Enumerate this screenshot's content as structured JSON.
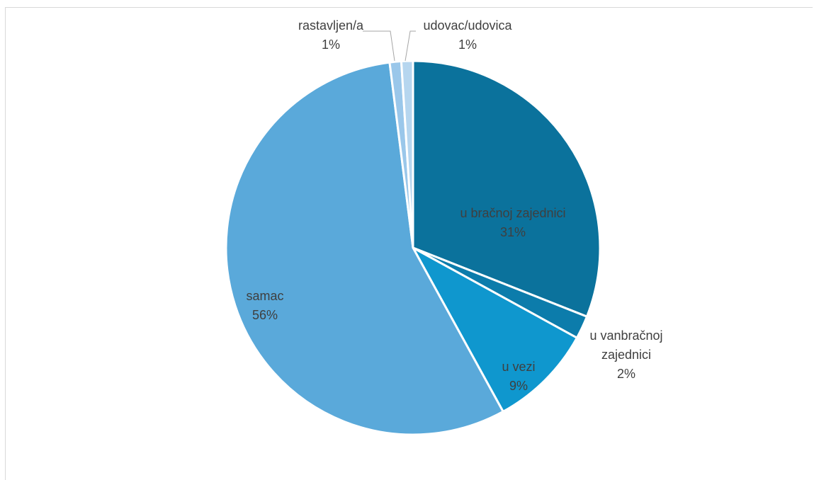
{
  "chart_data": {
    "type": "pie",
    "title": "",
    "slices": [
      {
        "label": "u bračnoj zajednici",
        "value": 31,
        "value_label": "31%",
        "color": "#0b729c"
      },
      {
        "label": "u vanbračnoj zajednici",
        "label_lines": [
          "u vanbračnoj",
          "zajednici"
        ],
        "value": 2,
        "value_label": "2%",
        "color": "#0c7cab"
      },
      {
        "label": "u vezi",
        "value": 9,
        "value_label": "9%",
        "color": "#0f97ce"
      },
      {
        "label": "samac",
        "value": 56,
        "value_label": "56%",
        "color": "#5aa9da"
      },
      {
        "label": "rastavljen/a",
        "value": 1,
        "value_label": "1%",
        "color": "#9ac7ea"
      },
      {
        "label": "udovac/udovica",
        "value": 1,
        "value_label": "1%",
        "color": "#b6d6ef"
      }
    ],
    "legend": "none"
  }
}
